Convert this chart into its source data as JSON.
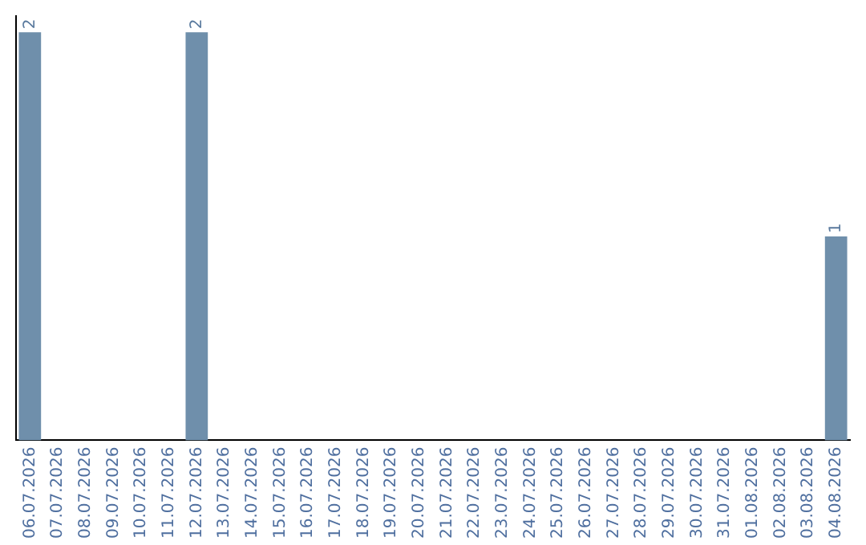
{
  "chart_data": {
    "type": "bar",
    "categories": [
      "06.07.2026",
      "07.07.2026",
      "08.07.2026",
      "09.07.2026",
      "10.07.2026",
      "11.07.2026",
      "12.07.2026",
      "13.07.2026",
      "14.07.2026",
      "15.07.2026",
      "16.07.2026",
      "17.07.2026",
      "18.07.2026",
      "19.07.2026",
      "20.07.2026",
      "21.07.2026",
      "22.07.2026",
      "23.07.2026",
      "24.07.2026",
      "25.07.2026",
      "26.07.2026",
      "27.07.2026",
      "28.07.2026",
      "29.07.2026",
      "30.07.2026",
      "31.07.2026",
      "01.08.2026",
      "02.08.2026",
      "03.08.2026",
      "04.08.2026"
    ],
    "values": [
      2,
      0,
      0,
      0,
      0,
      0,
      2,
      0,
      0,
      0,
      0,
      0,
      0,
      0,
      0,
      0,
      0,
      0,
      0,
      0,
      0,
      0,
      0,
      0,
      0,
      0,
      0,
      0,
      0,
      1
    ],
    "value_labels": [
      "2",
      null,
      null,
      null,
      null,
      null,
      "2",
      null,
      null,
      null,
      null,
      null,
      null,
      null,
      null,
      null,
      null,
      null,
      null,
      null,
      null,
      null,
      null,
      null,
      null,
      null,
      null,
      null,
      null,
      "1"
    ],
    "color": "#6f8fab",
    "ylim": [
      0,
      2.08
    ],
    "tick_labels": "x",
    "grid": false,
    "legend": false
  }
}
